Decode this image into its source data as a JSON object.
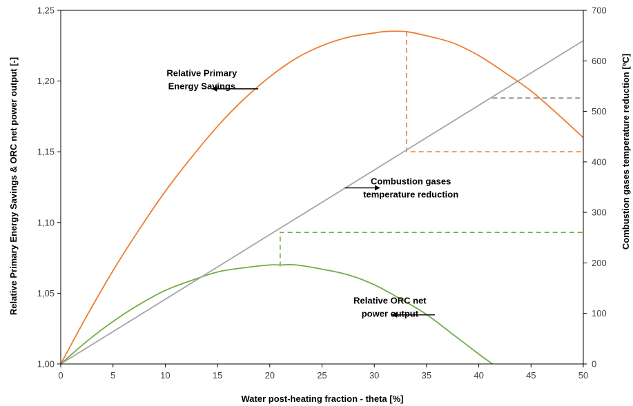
{
  "chart_data": {
    "type": "line",
    "title": "",
    "xlabel": "Water post-heating fraction - theta [%]",
    "ylabel_left": "Relative Primary Energy Savings & ORC net power output [-]",
    "ylabel_right": "Combustion gases temperature reduction [ºC]",
    "xlim": [
      0,
      50
    ],
    "ylim_left": [
      1.0,
      1.25
    ],
    "ylim_right": [
      0,
      700
    ],
    "x_ticks": [
      "0",
      "5",
      "10",
      "15",
      "20",
      "25",
      "30",
      "35",
      "40",
      "45",
      "50"
    ],
    "y_left_ticks": [
      "1,00",
      "1,05",
      "1,10",
      "1,15",
      "1,20",
      "1,25"
    ],
    "y_right_ticks": [
      "0",
      "100",
      "200",
      "300",
      "400",
      "500",
      "600",
      "700"
    ],
    "grid": false,
    "colors": {
      "pes": "#ED7D31",
      "orc": "#70AD47",
      "temp": "#A5A5A5",
      "ref": "#808080"
    },
    "series": [
      {
        "name": "Relative Primary Energy Savings",
        "axis": "left",
        "x": [
          0,
          2.5,
          5,
          7.5,
          10,
          12.5,
          15,
          17.5,
          20,
          22.5,
          25,
          27.5,
          30,
          31,
          33,
          35,
          37.5,
          40,
          42.5,
          45,
          47.5,
          50
        ],
        "y": [
          1.0,
          1.034,
          1.066,
          1.095,
          1.122,
          1.146,
          1.168,
          1.187,
          1.203,
          1.216,
          1.225,
          1.231,
          1.234,
          1.235,
          1.235,
          1.232,
          1.227,
          1.218,
          1.206,
          1.193,
          1.177,
          1.16
        ]
      },
      {
        "name": "Relative ORC net power output",
        "axis": "left",
        "x": [
          0,
          2.5,
          5,
          7.5,
          10,
          12.5,
          15,
          17.5,
          20,
          21,
          22.5,
          25,
          27.5,
          30,
          32.5,
          35,
          37.5,
          40,
          41.3
        ],
        "y": [
          1.0,
          1.016,
          1.03,
          1.042,
          1.052,
          1.059,
          1.065,
          1.068,
          1.07,
          1.07,
          1.07,
          1.067,
          1.063,
          1.056,
          1.046,
          1.035,
          1.021,
          1.007,
          1.0
        ]
      },
      {
        "name": "Combustion gases temperature reduction",
        "axis": "right",
        "x": [
          0,
          50
        ],
        "y": [
          0,
          640
        ]
      }
    ],
    "reference_lines": [
      {
        "color_key": "pes",
        "from": [
          33.1,
          1.235
        ],
        "corner": [
          33.1,
          1.15
        ],
        "to": [
          50,
          1.15
        ]
      },
      {
        "color_key": "orc",
        "from": [
          21,
          1.069
        ],
        "corner": [
          21,
          1.093
        ],
        "to": [
          50,
          1.093
        ]
      },
      {
        "color_key": "ref",
        "from": [
          41.3,
          1.188
        ],
        "to": [
          50,
          1.188
        ]
      }
    ],
    "annotations": [
      {
        "lines": [
          "Relative Primary",
          "Energy Savings"
        ],
        "x": 13.5,
        "y": 1.2035,
        "arrow_from": [
          18.9,
          1.1945
        ],
        "arrow_to": [
          14.5,
          1.1945
        ]
      },
      {
        "lines": [
          "Combustion gases",
          "temperature reduction"
        ],
        "x": 33.5,
        "y": 1.127,
        "arrow_from": [
          27.2,
          1.1245
        ],
        "arrow_to": [
          30.5,
          1.1245
        ]
      },
      {
        "lines": [
          "Relative ORC net",
          "power output"
        ],
        "x": 31.5,
        "y": 1.0427,
        "arrow_from": [
          35.8,
          1.0347
        ],
        "arrow_to": [
          31.7,
          1.0347
        ]
      }
    ]
  }
}
